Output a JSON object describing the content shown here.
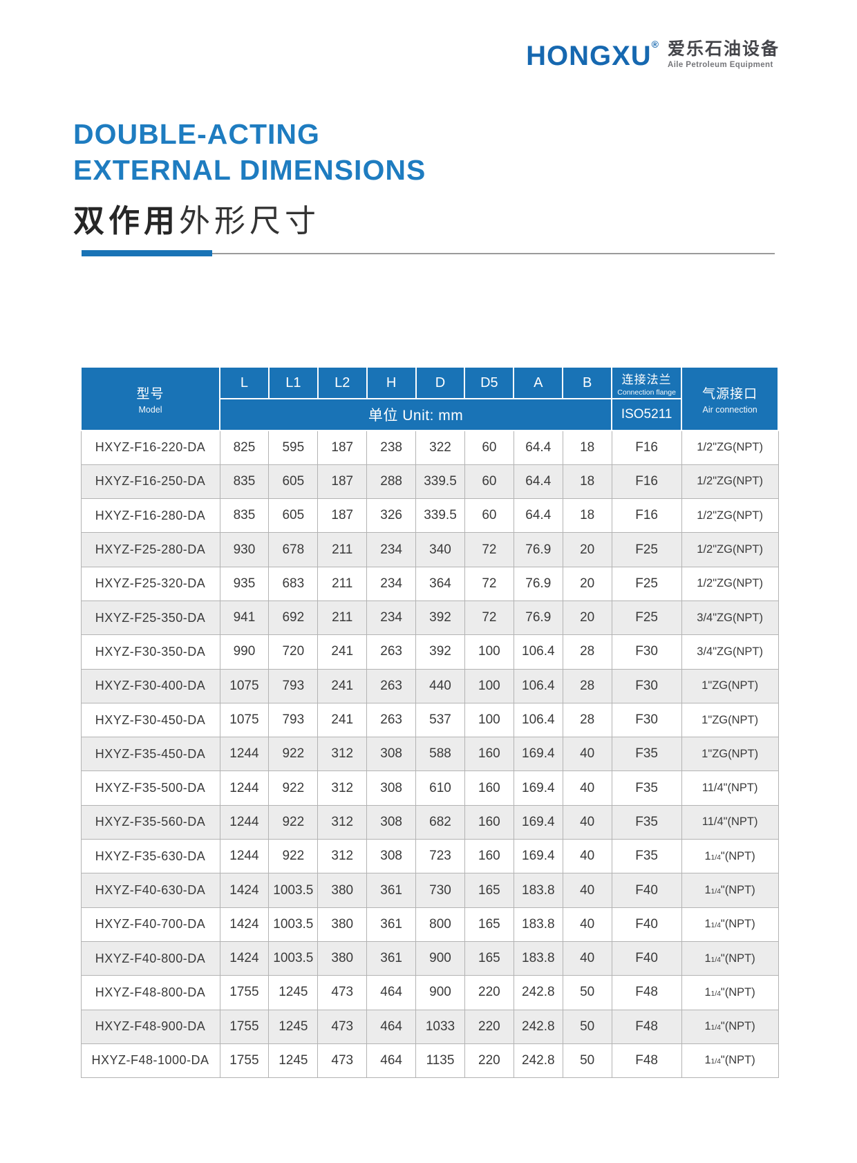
{
  "logo": {
    "brand": "HONGXU",
    "registered_mark": "®",
    "brand_cn": "爱乐石油设备",
    "brand_sub": "Aile Petroleum Equipment"
  },
  "title": {
    "line1": "DOUBLE-ACTING",
    "line2": "EXTERNAL DIMENSIONS",
    "line3_bold": "双作用",
    "line3_rest": "外形尺寸"
  },
  "colors": {
    "header_blue": "#1973b6",
    "title_blue": "#1e7cc0",
    "logo_blue": "#1668b0",
    "alt_row_gray": "#ececec",
    "border_gray": "#b3b3b3"
  },
  "table": {
    "header": {
      "model_cn": "型号",
      "model_en": "Model",
      "dims": [
        "L",
        "L1",
        "L2",
        "H",
        "D",
        "D5",
        "A",
        "B"
      ],
      "unit_label": "单位 Unit:  mm",
      "flange_cn": "连接法兰",
      "flange_en": "Connection flange",
      "flange_std": "ISO5211",
      "air_cn": "气源接口",
      "air_en": "Air connection"
    },
    "rows": [
      [
        "HXYZ-F16-220-DA",
        "825",
        "595",
        "187",
        "238",
        "322",
        "60",
        "64.4",
        "18",
        "F16",
        "1/2\"ZG(NPT)"
      ],
      [
        "HXYZ-F16-250-DA",
        "835",
        "605",
        "187",
        "288",
        "339.5",
        "60",
        "64.4",
        "18",
        "F16",
        "1/2\"ZG(NPT)"
      ],
      [
        "HXYZ-F16-280-DA",
        "835",
        "605",
        "187",
        "326",
        "339.5",
        "60",
        "64.4",
        "18",
        "F16",
        "1/2\"ZG(NPT)"
      ],
      [
        "HXYZ-F25-280-DA",
        "930",
        "678",
        "211",
        "234",
        "340",
        "72",
        "76.9",
        "20",
        "F25",
        "1/2\"ZG(NPT)"
      ],
      [
        "HXYZ-F25-320-DA",
        "935",
        "683",
        "211",
        "234",
        "364",
        "72",
        "76.9",
        "20",
        "F25",
        "1/2\"ZG(NPT)"
      ],
      [
        "HXYZ-F25-350-DA",
        "941",
        "692",
        "211",
        "234",
        "392",
        "72",
        "76.9",
        "20",
        "F25",
        "3/4\"ZG(NPT)"
      ],
      [
        "HXYZ-F30-350-DA",
        "990",
        "720",
        "241",
        "263",
        "392",
        "100",
        "106.4",
        "28",
        "F30",
        "3/4\"ZG(NPT)"
      ],
      [
        "HXYZ-F30-400-DA",
        "1075",
        "793",
        "241",
        "263",
        "440",
        "100",
        "106.4",
        "28",
        "F30",
        "1\"ZG(NPT)"
      ],
      [
        "HXYZ-F30-450-DA",
        "1075",
        "793",
        "241",
        "263",
        "537",
        "100",
        "106.4",
        "28",
        "F30",
        "1\"ZG(NPT)"
      ],
      [
        "HXYZ-F35-450-DA",
        "1244",
        "922",
        "312",
        "308",
        "588",
        "160",
        "169.4",
        "40",
        "F35",
        "1\"ZG(NPT)"
      ],
      [
        "HXYZ-F35-500-DA",
        "1244",
        "922",
        "312",
        "308",
        "610",
        "160",
        "169.4",
        "40",
        "F35",
        "11/4\"(NPT)"
      ],
      [
        "HXYZ-F35-560-DA",
        "1244",
        "922",
        "312",
        "308",
        "682",
        "160",
        "169.4",
        "40",
        "F35",
        "11/4\"(NPT)"
      ],
      [
        "HXYZ-F35-630-DA",
        "1244",
        "922",
        "312",
        "308",
        "723",
        "160",
        "169.4",
        "40",
        "F35",
        "1|1/4|\"(NPT)"
      ],
      [
        "HXYZ-F40-630-DA",
        "1424",
        "1003.5",
        "380",
        "361",
        "730",
        "165",
        "183.8",
        "40",
        "F40",
        "1|1/4|\"(NPT)"
      ],
      [
        "HXYZ-F40-700-DA",
        "1424",
        "1003.5",
        "380",
        "361",
        "800",
        "165",
        "183.8",
        "40",
        "F40",
        "1|1/4|\"(NPT)"
      ],
      [
        "HXYZ-F40-800-DA",
        "1424",
        "1003.5",
        "380",
        "361",
        "900",
        "165",
        "183.8",
        "40",
        "F40",
        "1|1/4|\"(NPT)"
      ],
      [
        "HXYZ-F48-800-DA",
        "1755",
        "1245",
        "473",
        "464",
        "900",
        "220",
        "242.8",
        "50",
        "F48",
        "1|1/4|\"(NPT)"
      ],
      [
        "HXYZ-F48-900-DA",
        "1755",
        "1245",
        "473",
        "464",
        "1033",
        "220",
        "242.8",
        "50",
        "F48",
        "1|1/4|\"(NPT)"
      ],
      [
        "HXYZ-F48-1000-DA",
        "1755",
        "1245",
        "473",
        "464",
        "1135",
        "220",
        "242.8",
        "50",
        "F48",
        "1|1/4|\"(NPT)"
      ]
    ]
  }
}
